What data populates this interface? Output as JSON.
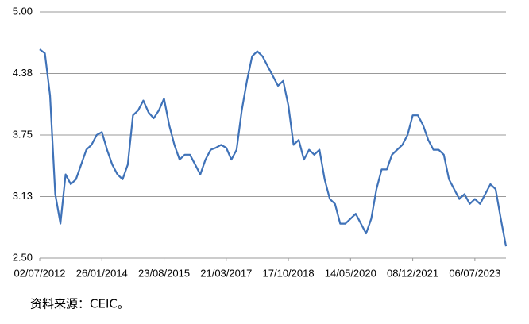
{
  "chart_data": {
    "type": "line",
    "categories": [
      "02/07/2012",
      null,
      null,
      null,
      null,
      null,
      null,
      null,
      null,
      null,
      null,
      null,
      "26/01/2014",
      null,
      null,
      null,
      null,
      null,
      null,
      null,
      null,
      null,
      null,
      null,
      "23/08/2015",
      null,
      null,
      null,
      null,
      null,
      null,
      null,
      null,
      null,
      null,
      null,
      "21/03/2017",
      null,
      null,
      null,
      null,
      null,
      null,
      null,
      null,
      null,
      null,
      null,
      "17/10/2018",
      null,
      null,
      null,
      null,
      null,
      null,
      null,
      null,
      null,
      null,
      null,
      "14/05/2020",
      null,
      null,
      null,
      null,
      null,
      null,
      null,
      null,
      null,
      null,
      null,
      "08/12/2021",
      null,
      null,
      null,
      null,
      null,
      null,
      null,
      null,
      null,
      null,
      null,
      "06/07/2023",
      null,
      null,
      null,
      null,
      null,
      null
    ],
    "values": [
      4.62,
      4.58,
      4.15,
      3.15,
      2.85,
      3.35,
      3.25,
      3.3,
      3.45,
      3.6,
      3.65,
      3.75,
      3.78,
      3.6,
      3.45,
      3.35,
      3.3,
      3.45,
      3.95,
      4.0,
      4.1,
      3.98,
      3.92,
      4.0,
      4.12,
      3.85,
      3.65,
      3.5,
      3.55,
      3.55,
      3.45,
      3.35,
      3.5,
      3.6,
      3.62,
      3.65,
      3.62,
      3.5,
      3.6,
      4.0,
      4.3,
      4.55,
      4.6,
      4.55,
      4.45,
      4.35,
      4.25,
      4.3,
      4.05,
      3.65,
      3.7,
      3.5,
      3.6,
      3.55,
      3.6,
      3.3,
      3.1,
      3.05,
      2.85,
      2.85,
      2.9,
      2.95,
      2.85,
      2.75,
      2.9,
      3.2,
      3.4,
      3.4,
      3.55,
      3.6,
      3.65,
      3.75,
      3.95,
      3.95,
      3.85,
      3.7,
      3.6,
      3.6,
      3.55,
      3.3,
      3.2,
      3.1,
      3.15,
      3.05,
      3.1,
      3.05,
      3.15,
      3.25,
      3.2,
      2.9,
      2.62
    ],
    "color": "#3f72b8",
    "ylim": [
      2.5,
      5.0
    ],
    "yticks": [
      {
        "value": 2.5,
        "label": "2.50"
      },
      {
        "value": 3.125,
        "label": "3.13"
      },
      {
        "value": 3.75,
        "label": "3.75"
      },
      {
        "value": 4.375,
        "label": "4.38"
      },
      {
        "value": 5.0,
        "label": "5.00"
      }
    ],
    "grid": true
  },
  "source": "资料来源：CEIC。"
}
